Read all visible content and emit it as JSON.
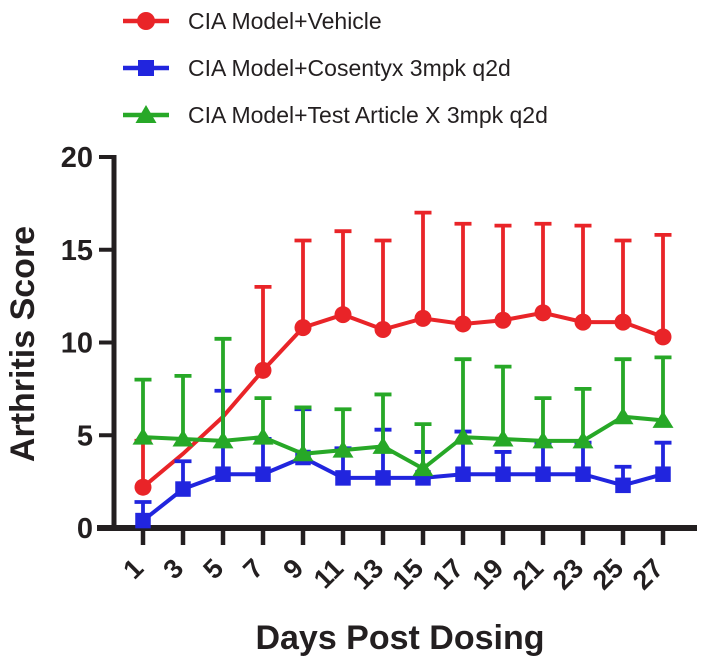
{
  "figure": {
    "background": "#ffffff",
    "text_color": "#231f20"
  },
  "legend": {
    "items": [
      {
        "label": "CIA Model+Vehicle",
        "marker": "circle",
        "color": "#e92428"
      },
      {
        "label": "CIA Model+Cosentyx 3mpk q2d",
        "marker": "square",
        "color": "#2125de"
      },
      {
        "label": "CIA Model+Test Article X 3mpk q2d",
        "marker": "triangle",
        "color": "#27a827"
      }
    ]
  },
  "axes": {
    "x_label": "Days Post Dosing",
    "y_label": "Arthritis Score",
    "y_ticks": [
      0,
      5,
      10,
      15,
      20
    ],
    "x_ticks": [
      1,
      3,
      5,
      7,
      9,
      11,
      13,
      15,
      17,
      19,
      21,
      23,
      25,
      27
    ],
    "y_range": [
      0,
      20
    ],
    "x_range": [
      1,
      27
    ]
  },
  "chart_data": {
    "type": "line",
    "title": "",
    "xlabel": "Days Post Dosing",
    "ylabel": "Arthritis Score",
    "ylim": [
      0,
      20
    ],
    "x": [
      1,
      3,
      5,
      7,
      9,
      11,
      13,
      15,
      17,
      19,
      21,
      23,
      25,
      27
    ],
    "error_bars": "upper_only_sd",
    "legend_position": "top-left",
    "grid": false,
    "series": [
      {
        "name": "CIA Model+Vehicle",
        "marker": "circle",
        "color": "#e92428",
        "values": [
          2.2,
          4.0,
          6.0,
          8.5,
          10.8,
          11.5,
          10.7,
          11.3,
          11.0,
          11.2,
          11.6,
          11.1,
          11.1,
          10.3
        ],
        "error_tops": [
          4.7,
          null,
          null,
          13.0,
          15.5,
          16.0,
          15.5,
          17.0,
          16.4,
          16.3,
          16.4,
          16.3,
          15.5,
          15.8
        ],
        "hidden_markers": [
          3,
          5
        ]
      },
      {
        "name": "CIA Model+Cosentyx 3mpk q2d",
        "marker": "square",
        "color": "#2125de",
        "values": [
          0.4,
          2.1,
          2.9,
          2.9,
          3.8,
          2.7,
          2.7,
          2.7,
          2.9,
          2.9,
          2.9,
          2.9,
          2.3,
          2.9
        ],
        "error_tops": [
          1.4,
          3.6,
          7.4,
          4.8,
          6.4,
          4.3,
          5.3,
          4.1,
          5.2,
          4.1,
          4.6,
          4.6,
          3.3,
          4.6
        ],
        "hidden_markers": []
      },
      {
        "name": "CIA Model+Test Article X 3mpk q2d",
        "marker": "triangle",
        "color": "#27a827",
        "values": [
          4.9,
          4.8,
          4.7,
          4.9,
          4.0,
          4.2,
          4.4,
          3.2,
          4.9,
          4.8,
          4.7,
          4.7,
          6.0,
          5.8
        ],
        "error_tops": [
          8.0,
          8.2,
          10.2,
          7.0,
          6.5,
          6.4,
          7.2,
          5.6,
          9.1,
          8.7,
          7.0,
          7.5,
          9.1,
          9.2
        ],
        "hidden_markers": []
      }
    ]
  }
}
